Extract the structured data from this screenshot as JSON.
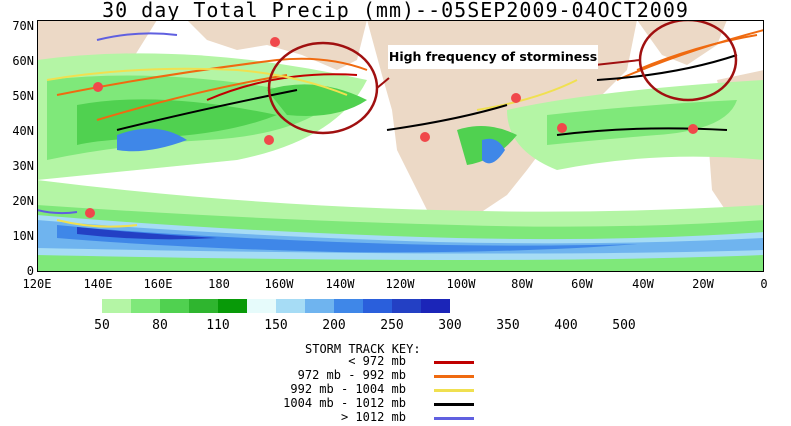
{
  "title": "30 day Total Precip (mm)--05SEP2009-04OCT2009",
  "annotation": "High frequency of storminess",
  "y_axis_labels": [
    "70N",
    "60N",
    "50N",
    "40N",
    "30N",
    "20N",
    "10N",
    "0"
  ],
  "x_axis_labels": [
    "120E",
    "140E",
    "160E",
    "180",
    "160W",
    "140W",
    "120W",
    "100W",
    "80W",
    "60W",
    "40W",
    "20W",
    "0"
  ],
  "colorbar": {
    "labels": [
      "50",
      "80",
      "110",
      "150",
      "200",
      "250",
      "300",
      "350",
      "400",
      "500"
    ],
    "colors": [
      "#b4f5a5",
      "#7fe87a",
      "#50d150",
      "#2fb52f",
      "#089a08",
      "#e6fbfb",
      "#a6dcf5",
      "#6fb4ef",
      "#3f87e8",
      "#2a5fdc",
      "#2340c4",
      "#1b25b8"
    ]
  },
  "storm_key": {
    "title": "STORM TRACK KEY:",
    "entries": [
      {
        "label": "< 972 mb",
        "color": "#c00000"
      },
      {
        "label": "972 mb - 992 mb",
        "color": "#ef6a10"
      },
      {
        "label": "992 mb - 1004 mb",
        "color": "#f0e050"
      },
      {
        "label": "1004 mb - 1012 mb",
        "color": "#000000"
      },
      {
        "label": "> 1012 mb",
        "color": "#6060e0"
      }
    ]
  },
  "map_colors": {
    "ocean": "#ffffff",
    "land": "#ecd9c6",
    "marker": "#f0484b",
    "circle": "#a01010"
  }
}
